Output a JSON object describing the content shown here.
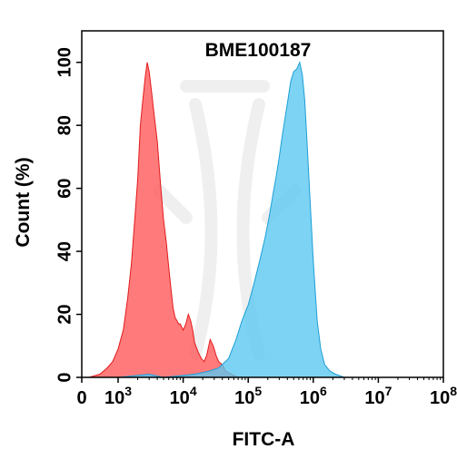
{
  "chart_data": {
    "type": "area",
    "title": "BME100187",
    "xlabel": "FITC-A",
    "ylabel": "Count (%)",
    "x_scale": "biexponential",
    "xlim": [
      0,
      100000000
    ],
    "ylim": [
      0,
      110
    ],
    "x_ticks": [
      {
        "value": 0,
        "base": "0",
        "exp": ""
      },
      {
        "value": 1000,
        "base": "10",
        "exp": "3"
      },
      {
        "value": 10000,
        "base": "10",
        "exp": "4"
      },
      {
        "value": 100000,
        "base": "10",
        "exp": "5"
      },
      {
        "value": 1000000,
        "base": "10",
        "exp": "6"
      },
      {
        "value": 10000000,
        "base": "10",
        "exp": "7"
      },
      {
        "value": 100000000,
        "base": "10",
        "exp": "8"
      }
    ],
    "y_ticks": [
      0,
      20,
      40,
      60,
      80,
      100
    ],
    "grid": false,
    "series": [
      {
        "color": "#ff5a5a",
        "stroke": "#e31a1c",
        "points": [
          [
            -300,
            0
          ],
          [
            -150,
            2
          ],
          [
            0,
            0
          ],
          [
            200,
            0
          ],
          [
            500,
            1
          ],
          [
            700,
            3
          ],
          [
            850,
            5
          ],
          [
            1000,
            9
          ],
          [
            1200,
            15
          ],
          [
            1400,
            25
          ],
          [
            1600,
            36
          ],
          [
            1800,
            50
          ],
          [
            2000,
            63
          ],
          [
            2200,
            80
          ],
          [
            2400,
            88
          ],
          [
            2600,
            95
          ],
          [
            2800,
            100
          ],
          [
            3000,
            97
          ],
          [
            3300,
            90
          ],
          [
            3600,
            83
          ],
          [
            4000,
            75
          ],
          [
            4500,
            61
          ],
          [
            5000,
            50
          ],
          [
            5500,
            43
          ],
          [
            6000,
            35
          ],
          [
            6500,
            28
          ],
          [
            7000,
            22
          ],
          [
            7500,
            19
          ],
          [
            8000,
            18
          ],
          [
            8500,
            17
          ],
          [
            9000,
            17
          ],
          [
            10000,
            15
          ],
          [
            11000,
            17
          ],
          [
            12000,
            20
          ],
          [
            13000,
            18
          ],
          [
            14000,
            15
          ],
          [
            15000,
            11
          ],
          [
            17000,
            8
          ],
          [
            19000,
            6
          ],
          [
            21000,
            5
          ],
          [
            23000,
            7
          ],
          [
            26000,
            12
          ],
          [
            29000,
            10
          ],
          [
            32000,
            7
          ],
          [
            35000,
            5
          ],
          [
            40000,
            4
          ],
          [
            45000,
            2
          ],
          [
            55000,
            1
          ],
          [
            70000,
            0
          ]
        ]
      },
      {
        "color": "#5cc8f0",
        "stroke": "#1e9fd6",
        "points": [
          [
            1000,
            0
          ],
          [
            3000,
            1
          ],
          [
            5000,
            0
          ],
          [
            15000,
            1
          ],
          [
            25000,
            2
          ],
          [
            35000,
            3
          ],
          [
            50000,
            6
          ],
          [
            65000,
            12
          ],
          [
            80000,
            18
          ],
          [
            100000,
            23
          ],
          [
            120000,
            29
          ],
          [
            150000,
            37
          ],
          [
            180000,
            44
          ],
          [
            210000,
            51
          ],
          [
            240000,
            58
          ],
          [
            270000,
            64
          ],
          [
            300000,
            70
          ],
          [
            330000,
            76
          ],
          [
            360000,
            81
          ],
          [
            400000,
            87
          ],
          [
            450000,
            94
          ],
          [
            500000,
            97
          ],
          [
            560000,
            98
          ],
          [
            620000,
            100
          ],
          [
            680000,
            96
          ],
          [
            740000,
            88
          ],
          [
            800000,
            75
          ],
          [
            900000,
            55
          ],
          [
            1000000,
            37
          ],
          [
            1150000,
            18
          ],
          [
            1300000,
            9
          ],
          [
            1500000,
            4
          ],
          [
            1800000,
            2
          ],
          [
            2200000,
            1
          ],
          [
            3000000,
            0
          ],
          [
            10000000,
            0
          ],
          [
            100000000,
            0
          ]
        ]
      }
    ]
  }
}
